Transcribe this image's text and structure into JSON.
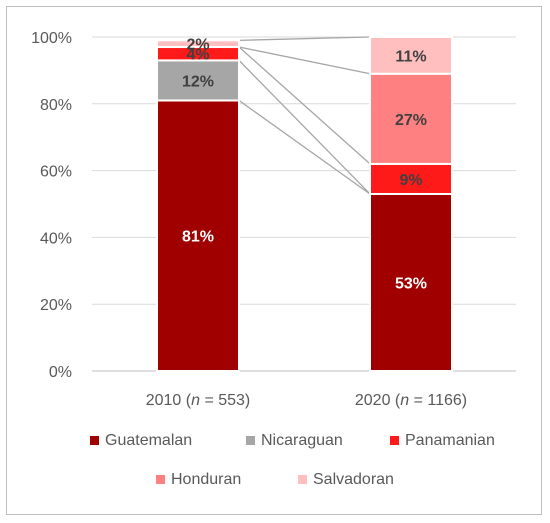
{
  "chart_data": {
    "type": "bar",
    "stacked": true,
    "percent_stacked": true,
    "categories": [
      {
        "year": "2010",
        "n_label": "n",
        "n_value": " = 553"
      },
      {
        "year": "2020",
        "n_label": "n",
        "n_value": " = 1166"
      }
    ],
    "series": [
      {
        "name": "Guatemalan",
        "color": "#a00000",
        "values": [
          81,
          53
        ],
        "labels": [
          "81%",
          "53%"
        ],
        "label_color": "#ffffff"
      },
      {
        "name": "Nicaraguan",
        "color": "#a6a6a6",
        "values": [
          12,
          0
        ],
        "labels": [
          "12%",
          ""
        ],
        "label_color": "#404040"
      },
      {
        "name": "Panamanian",
        "color": "#ff1a1a",
        "values": [
          4,
          9
        ],
        "labels": [
          "4%",
          "9%"
        ],
        "label_color": "#404040"
      },
      {
        "name": "Honduran",
        "color": "#ff8080",
        "values": [
          0,
          27
        ],
        "labels": [
          "",
          "27%"
        ],
        "label_color": "#404040"
      },
      {
        "name": "Salvadoran",
        "color": "#ffbfbf",
        "values": [
          2,
          11
        ],
        "labels": [
          "2%",
          "11%"
        ],
        "label_color": "#404040"
      }
    ],
    "y_ticks": [
      "0%",
      "20%",
      "40%",
      "60%",
      "80%",
      "100%"
    ],
    "ylim": [
      0,
      100
    ],
    "grid": true,
    "legend_position": "bottom",
    "series_lines": true
  }
}
